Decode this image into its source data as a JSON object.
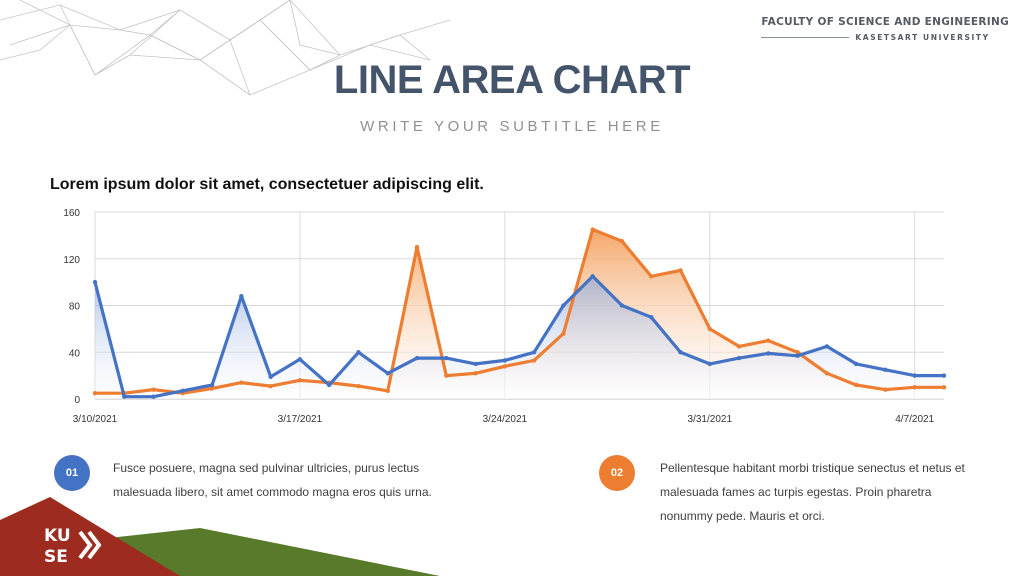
{
  "header": {
    "brand": "FACULTY OF SCIENCE AND ENGINEERING",
    "brand_sub": "KASETSART UNIVERSITY",
    "title": "LINE AREA CHART",
    "subtitle": "WRITE YOUR SUBTITLE HERE"
  },
  "heading": "Lorem ipsum dolor sit amet, consectetuer adipiscing elit.",
  "chart_data": {
    "type": "area",
    "title": "",
    "xlabel": "",
    "ylabel": "",
    "ylim": [
      0,
      160
    ],
    "yticks": [
      "0",
      "40",
      "80",
      "120",
      "160"
    ],
    "x": [
      "3/10/2021",
      "3/11/2021",
      "3/12/2021",
      "3/13/2021",
      "3/14/2021",
      "3/15/2021",
      "3/16/2021",
      "3/17/2021",
      "3/18/2021",
      "3/19/2021",
      "3/20/2021",
      "3/21/2021",
      "3/22/2021",
      "3/23/2021",
      "3/24/2021",
      "3/25/2021",
      "3/26/2021",
      "3/27/2021",
      "3/28/2021",
      "3/29/2021",
      "3/30/2021",
      "3/31/2021",
      "4/1/2021",
      "4/2/2021",
      "4/3/2021",
      "4/4/2021",
      "4/5/2021",
      "4/6/2021",
      "4/7/2021",
      "4/8/2021"
    ],
    "xtick_labels": [
      "3/10/2021",
      "3/17/2021",
      "3/24/2021",
      "3/31/2021",
      "4/7/2021"
    ],
    "grid": true,
    "legend": "none",
    "series": [
      {
        "color": "#4472c4",
        "values": [
          100,
          2,
          2,
          7,
          12,
          88,
          19,
          34,
          12,
          40,
          22,
          35,
          35,
          30,
          33,
          40,
          80,
          105,
          80,
          70,
          40,
          30,
          35,
          39,
          37,
          45,
          30,
          25,
          20,
          20
        ]
      },
      {
        "color": "#ed7d31",
        "values": [
          5,
          5,
          8,
          5,
          9,
          14,
          11,
          16,
          14,
          11,
          7,
          130,
          20,
          22,
          28,
          33,
          56,
          145,
          135,
          105,
          110,
          60,
          45,
          50,
          40,
          22,
          12,
          8,
          10,
          10
        ]
      }
    ]
  },
  "points": [
    {
      "number": "01",
      "text": "Fusce posuere, magna sed pulvinar ultricies, purus lectus malesuada libero, sit amet commodo magna eros quis urna."
    },
    {
      "number": "02",
      "text": "Pellentesque habitant morbi tristique senectus et netus et malesuada fames ac turpis egestas. Proin pharetra nonummy pede. Mauris et orci."
    }
  ],
  "colors": {
    "title": "#44546a",
    "accent_blue": "#4472c4",
    "accent_orange": "#ed7d31",
    "footer_red": "#9e2b20",
    "footer_green": "#5a7a2b"
  },
  "logo": {
    "text": "KU SE"
  }
}
